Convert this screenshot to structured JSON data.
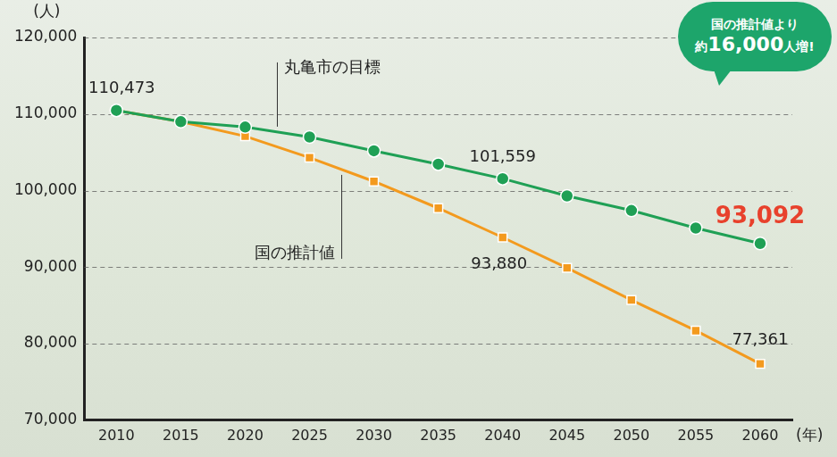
{
  "chart_data": {
    "type": "line",
    "y_label": "(人)",
    "x_label": "(年)",
    "annotation": [
      "国の推計値より",
      "約16,000人増!"
    ],
    "categories": [
      "2010",
      "2015",
      "2020",
      "2025",
      "2030",
      "2035",
      "2040",
      "2045",
      "2050",
      "2055",
      "2060"
    ],
    "series": [
      {
        "name": "丸亀市の目標",
        "color": "#1fa055",
        "marker": "circle",
        "values": [
          110473,
          109000,
          108300,
          107000,
          105200,
          103450,
          101559,
          99300,
          97400,
          95100,
          93092
        ],
        "value_labels": [
          "110,473",
          null,
          null,
          null,
          null,
          null,
          "101,559",
          null,
          null,
          null,
          "93,092"
        ]
      },
      {
        "name": "国の推計値",
        "color": "#f39a1e",
        "marker": "square",
        "values": [
          110473,
          109000,
          107100,
          104300,
          101200,
          97700,
          93880,
          89900,
          85700,
          81700,
          77361
        ],
        "value_labels": [
          null,
          null,
          null,
          null,
          null,
          null,
          "93,880",
          null,
          null,
          null,
          "77,361"
        ]
      }
    ],
    "ylim": [
      70000,
      120000
    ],
    "yticks": [
      {
        "value": 70000,
        "label": "70,000"
      },
      {
        "value": 80000,
        "label": "80,000"
      },
      {
        "value": 90000,
        "label": "90,000"
      },
      {
        "value": 100000,
        "label": "100,000"
      },
      {
        "value": 110000,
        "label": "110,000"
      },
      {
        "value": 120000,
        "label": "120,000"
      }
    ],
    "grid": true,
    "data_labels": true
  }
}
